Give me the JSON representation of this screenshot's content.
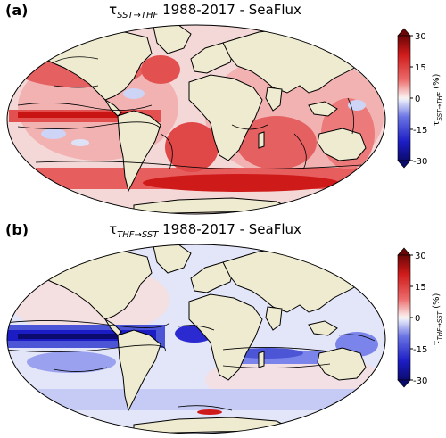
{
  "panels": [
    {
      "letter": "(a)",
      "tau_symbol": "τ",
      "subscript": "SST→THF",
      "title_suffix": " 1988-2017 - SeaFlux",
      "colorbar": {
        "label_symbol": "τ",
        "label_subscript": "SST→THF",
        "label_unit": "(%)",
        "ticks": [
          "30",
          "15",
          "0",
          "-15",
          "-30"
        ]
      },
      "dominant_sign": "positive"
    },
    {
      "letter": "(b)",
      "tau_symbol": "τ",
      "subscript": "THF→SST",
      "title_suffix": " 1988-2017 - SeaFlux",
      "colorbar": {
        "label_symbol": "τ",
        "label_subscript": "THF→SST",
        "label_unit": "(%)",
        "ticks": [
          "30",
          "15",
          "0",
          "-15",
          "-30"
        ]
      },
      "dominant_sign": "negative"
    }
  ],
  "colors": {
    "land": "#efebd0",
    "strong_red": "#cf1a1a",
    "mid_red": "#ec6a6a",
    "light_red": "#f7c4c4",
    "neutral": "#f8f1f1",
    "light_blue": "#cdd4f6",
    "mid_blue": "#6a74e4",
    "strong_blue": "#1c1cc4",
    "dark_blue": "#0b0b6e",
    "dark_red": "#6a0606"
  }
}
